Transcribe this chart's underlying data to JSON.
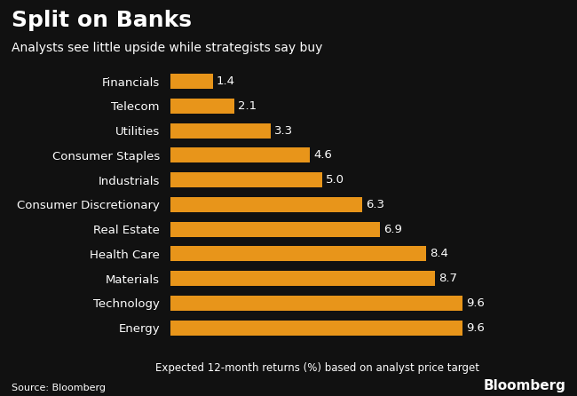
{
  "title": "Split on Banks",
  "subtitle": "Analysts see little upside while strategists say buy",
  "categories": [
    "Energy",
    "Technology",
    "Materials",
    "Health Care",
    "Real Estate",
    "Consumer Discretionary",
    "Industrials",
    "Consumer Staples",
    "Utilities",
    "Telecom",
    "Financials"
  ],
  "values": [
    9.6,
    9.6,
    8.7,
    8.4,
    6.9,
    6.3,
    5.0,
    4.6,
    3.3,
    2.1,
    1.4
  ],
  "bar_color": "#E8951A",
  "background_color": "#111111",
  "text_color": "#ffffff",
  "xlabel": "Expected 12-month returns (%) based on analyst price target",
  "source": "Source: Bloomberg",
  "bloomberg_label": "Bloomberg",
  "xlim": [
    0,
    11
  ],
  "title_fontsize": 18,
  "subtitle_fontsize": 10,
  "label_fontsize": 9.5,
  "value_fontsize": 9.5,
  "bar_height": 0.62
}
